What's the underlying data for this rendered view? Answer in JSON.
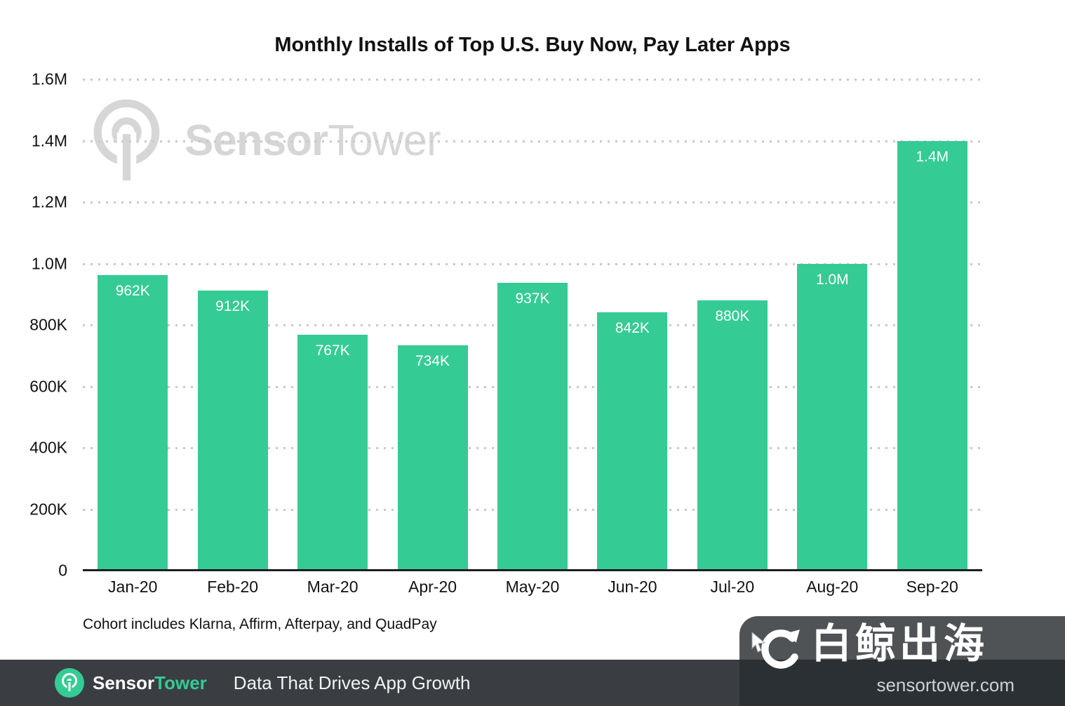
{
  "chart_data": {
    "type": "bar",
    "title": "Monthly Installs of Top U.S. Buy Now, Pay Later Apps",
    "categories": [
      "Jan-20",
      "Feb-20",
      "Mar-20",
      "Apr-20",
      "May-20",
      "Jun-20",
      "Jul-20",
      "Aug-20",
      "Sep-20"
    ],
    "values": [
      962000,
      912000,
      767000,
      734000,
      937000,
      842000,
      880000,
      1000000,
      1400000
    ],
    "value_labels": [
      "962K",
      "912K",
      "767K",
      "734K",
      "937K",
      "842K",
      "880K",
      "1.0M",
      "1.4M"
    ],
    "y_ticks": [
      "1.6M",
      "1.4M",
      "1.2M",
      "1.0M",
      "800K",
      "600K",
      "400K",
      "200K",
      "0"
    ],
    "y_tick_values": [
      1600000,
      1400000,
      1200000,
      1000000,
      800000,
      600000,
      400000,
      200000,
      0
    ],
    "ylim": [
      0,
      1600000
    ],
    "xlabel": "",
    "ylabel": "",
    "grid": true,
    "legend": "none",
    "bar_color": "#35cb95",
    "footnote": "Cohort includes Klarna, Affirm, Afterpay, and QuadPay"
  },
  "watermark": {
    "brand_sensor": "Sensor",
    "brand_tower": "Tower"
  },
  "footer": {
    "brand_sensor": "Sensor",
    "brand_tower": "Tower",
    "tagline": "Data That Drives App Growth"
  },
  "overlay": {
    "text": "白鲸出海",
    "url": "sensortower.com"
  },
  "colors": {
    "bar_green": "#35cb95",
    "footer_bg": "#3a3e42",
    "gridline": "#c9c9c9",
    "watermark_gray": "#d6d6d6"
  }
}
